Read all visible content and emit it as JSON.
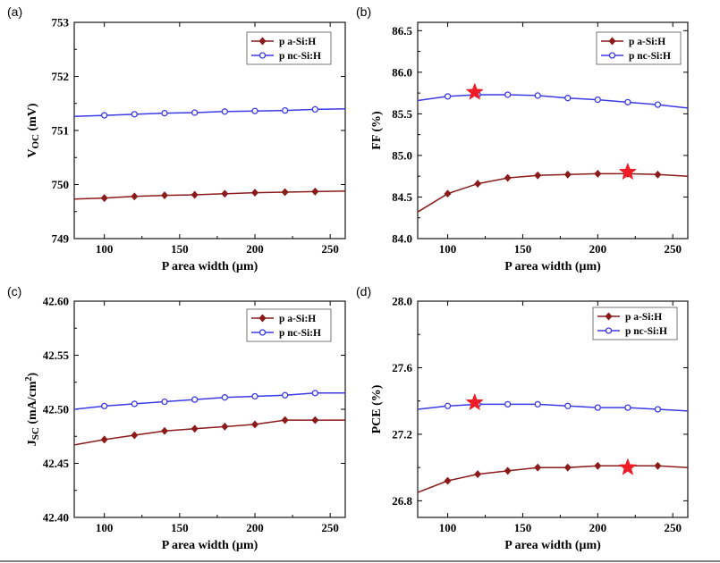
{
  "colors": {
    "a_si": "#8b1a1a",
    "nc_si": "#3a3ae6",
    "star": "#ee1c24",
    "axis": "#000000"
  },
  "chart_data": [
    {
      "panel": "(a)",
      "type": "line",
      "xlabel": "P area width (μm)",
      "ylabel": "VOC (mV)",
      "xlim": [
        80,
        260
      ],
      "ylim": [
        749,
        753
      ],
      "xticks": [
        100,
        150,
        200,
        250
      ],
      "yticks": [
        749,
        750,
        751,
        752,
        753
      ],
      "ytick_labels": [
        "749",
        "750",
        "751",
        "752",
        "753"
      ],
      "legend": "top-right",
      "x": [
        80,
        100,
        120,
        140,
        160,
        180,
        200,
        220,
        240,
        260
      ],
      "series": [
        {
          "name": "p a-Si:H",
          "color": "#8b1a1a",
          "marker": "diamond",
          "values": [
            749.73,
            749.75,
            749.78,
            749.8,
            749.81,
            749.83,
            749.85,
            749.86,
            749.87,
            749.88
          ]
        },
        {
          "name": "p nc-Si:H",
          "color": "#3a3ae6",
          "marker": "circle",
          "values": [
            751.26,
            751.28,
            751.3,
            751.32,
            751.33,
            751.35,
            751.36,
            751.37,
            751.39,
            751.4
          ]
        }
      ],
      "stars": []
    },
    {
      "panel": "(b)",
      "type": "line",
      "xlabel": "P area width (μm)",
      "ylabel": "FF (%)",
      "xlim": [
        80,
        260
      ],
      "ylim": [
        84.0,
        86.6
      ],
      "xticks": [
        100,
        150,
        200,
        250
      ],
      "yticks": [
        84.0,
        84.5,
        85.0,
        85.5,
        86.0,
        86.5
      ],
      "ytick_labels": [
        "84.0",
        "84.5",
        "85.0",
        "85.5",
        "86.0",
        "86.5"
      ],
      "legend": "top-right",
      "x": [
        80,
        100,
        120,
        140,
        160,
        180,
        200,
        220,
        240,
        260
      ],
      "series": [
        {
          "name": "p a-Si:H",
          "color": "#8b1a1a",
          "marker": "diamond",
          "values": [
            84.32,
            84.54,
            84.66,
            84.73,
            84.76,
            84.77,
            84.78,
            84.78,
            84.77,
            84.75
          ]
        },
        {
          "name": "p nc-Si:H",
          "color": "#3a3ae6",
          "marker": "circle",
          "values": [
            85.66,
            85.71,
            85.73,
            85.73,
            85.72,
            85.69,
            85.67,
            85.64,
            85.61,
            85.57
          ]
        }
      ],
      "stars": [
        {
          "x": 118,
          "y": 85.76
        },
        {
          "x": 220,
          "y": 84.8
        }
      ]
    },
    {
      "panel": "(c)",
      "type": "line",
      "xlabel": "P area width (μm)",
      "ylabel": "JSC (mA/cm2)",
      "xlim": [
        80,
        260
      ],
      "ylim": [
        42.4,
        42.6
      ],
      "xticks": [
        100,
        150,
        200,
        250
      ],
      "yticks": [
        42.4,
        42.45,
        42.5,
        42.55,
        42.6
      ],
      "ytick_labels": [
        "42.40",
        "42.45",
        "42.50",
        "42.55",
        "42.60"
      ],
      "legend": "top-right",
      "x": [
        80,
        100,
        120,
        140,
        160,
        180,
        200,
        220,
        240,
        260
      ],
      "series": [
        {
          "name": "p a-Si:H",
          "color": "#8b1a1a",
          "marker": "diamond",
          "values": [
            42.467,
            42.472,
            42.476,
            42.48,
            42.482,
            42.484,
            42.486,
            42.49,
            42.49,
            42.49
          ]
        },
        {
          "name": "p nc-Si:H",
          "color": "#3a3ae6",
          "marker": "circle",
          "values": [
            42.5,
            42.503,
            42.505,
            42.507,
            42.509,
            42.511,
            42.512,
            42.513,
            42.515,
            42.515
          ]
        }
      ],
      "stars": []
    },
    {
      "panel": "(d)",
      "type": "line",
      "xlabel": "P area width (μm)",
      "ylabel": "PCE (%)",
      "xlim": [
        80,
        260
      ],
      "ylim": [
        26.7,
        28.0
      ],
      "xticks": [
        100,
        150,
        200,
        250
      ],
      "yticks": [
        26.8,
        27.2,
        27.6,
        28.0
      ],
      "ytick_labels": [
        "26.8",
        "27.2",
        "27.6",
        "28.0"
      ],
      "legend": "top-right",
      "x": [
        80,
        100,
        120,
        140,
        160,
        180,
        200,
        220,
        240,
        260
      ],
      "series": [
        {
          "name": "p a-Si:H",
          "color": "#8b1a1a",
          "marker": "diamond",
          "values": [
            26.85,
            26.92,
            26.96,
            26.98,
            27.0,
            27.0,
            27.01,
            27.01,
            27.01,
            27.0
          ]
        },
        {
          "name": "p nc-Si:H",
          "color": "#3a3ae6",
          "marker": "circle",
          "values": [
            27.35,
            27.37,
            27.38,
            27.38,
            27.38,
            27.37,
            27.36,
            27.36,
            27.35,
            27.34
          ]
        }
      ],
      "stars": [
        {
          "x": 118,
          "y": 27.39
        },
        {
          "x": 220,
          "y": 27.0
        }
      ]
    }
  ]
}
